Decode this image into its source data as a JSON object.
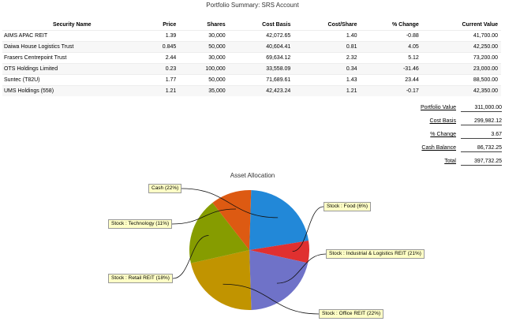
{
  "page": {
    "title": "Portfolio Summary: SRS Account"
  },
  "table": {
    "headers": {
      "security": "Security Name",
      "price": "Price",
      "shares": "Shares",
      "cost_basis": "Cost Basis",
      "cost_share": "Cost/Share",
      "pct_change": "% Change",
      "current_value": "Current Value"
    },
    "rows": [
      {
        "security": "AIMS APAC REIT",
        "price": "1.39",
        "shares": "30,000",
        "cost_basis": "42,072.65",
        "cost_share": "1.40",
        "pct_change": "-0.88",
        "current_value": "41,700.00"
      },
      {
        "security": "Daiwa House Logistics Trust",
        "price": "0.845",
        "shares": "50,000",
        "cost_basis": "40,604.41",
        "cost_share": "0.81",
        "pct_change": "4.05",
        "current_value": "42,250.00"
      },
      {
        "security": "Frasers Centrepoint Trust",
        "price": "2.44",
        "shares": "30,000",
        "cost_basis": "69,634.12",
        "cost_share": "2.32",
        "pct_change": "5.12",
        "current_value": "73,200.00"
      },
      {
        "security": "OTS Holdings Limited",
        "price": "0.23",
        "shares": "100,000",
        "cost_basis": "33,558.09",
        "cost_share": "0.34",
        "pct_change": "-31.46",
        "current_value": "23,000.00"
      },
      {
        "security": "Suntec (T82U)",
        "price": "1.77",
        "shares": "50,000",
        "cost_basis": "71,689.61",
        "cost_share": "1.43",
        "pct_change": "23.44",
        "current_value": "88,500.00"
      },
      {
        "security": "UMS Holdings (558)",
        "price": "1.21",
        "shares": "35,000",
        "cost_basis": "42,423.24",
        "cost_share": "1.21",
        "pct_change": "-0.17",
        "current_value": "42,350.00"
      }
    ]
  },
  "summary": [
    {
      "label": "Portfolio Value",
      "value": "311,000.00"
    },
    {
      "label": "Cost Basis",
      "value": "299,982.12"
    },
    {
      "label": "% Change",
      "value": "3.67"
    },
    {
      "label": "Cash Balance",
      "value": "86,732.25"
    },
    {
      "label": "Total",
      "value": "397,732.25"
    }
  ],
  "chart_data": {
    "type": "pie",
    "title": "Asset Allocation",
    "slices": [
      {
        "label": "Cash (22%)",
        "value": 22,
        "color": "#2288d8"
      },
      {
        "label": "Stock : Food (6%)",
        "value": 6,
        "color": "#e03030"
      },
      {
        "label": "Stock : Industrial & Logistics REIT (21%)",
        "value": 21,
        "color": "#6f72c8"
      },
      {
        "label": "Stock : Office REIT (22%)",
        "value": 22,
        "color": "#c19400"
      },
      {
        "label": "Stock : Retail REIT (18%)",
        "value": 18,
        "color": "#869c00"
      },
      {
        "label": "Stock : Technology (11%)",
        "value": 11,
        "color": "#dd5a12"
      }
    ]
  }
}
